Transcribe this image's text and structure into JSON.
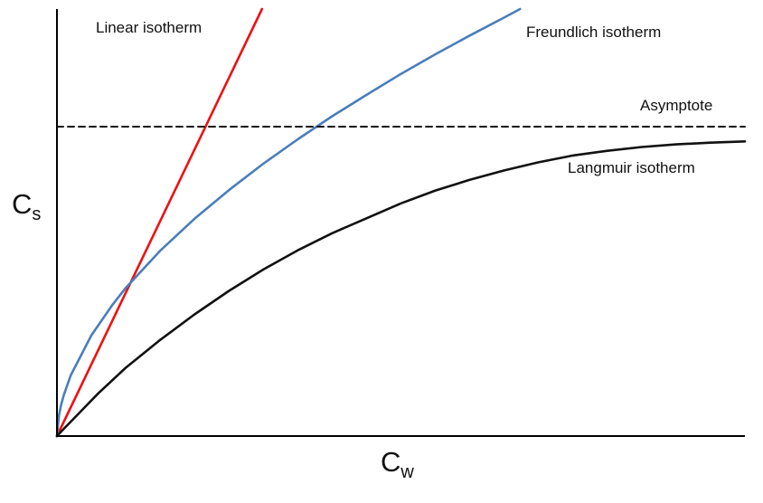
{
  "figure": {
    "background": "#ffffff",
    "axis_color": "#000000"
  },
  "chart_data": {
    "type": "line",
    "title": "",
    "subtitle": "",
    "xlabel": {
      "main": "C",
      "sub": "w"
    },
    "ylabel": {
      "main": "C",
      "sub": "s"
    },
    "x_range": [
      0,
      1
    ],
    "y_range": [
      0,
      1
    ],
    "grid": false,
    "legend": "inline-annotations",
    "axes_shown": [
      "left",
      "bottom"
    ],
    "ticks": "none",
    "series": [
      {
        "id": "linear",
        "name": "Linear isotherm",
        "color": "#ee1111",
        "style": "solid",
        "points": [
          [
            0,
            0
          ],
          [
            0.298,
            1.0
          ]
        ]
      },
      {
        "id": "freundlich",
        "name": "Freundlich isotherm",
        "color": "#4a7ebb",
        "style": "solid",
        "points": [
          [
            0,
            0
          ],
          [
            0.003,
            0.049
          ],
          [
            0.006,
            0.073
          ],
          [
            0.01,
            0.096
          ],
          [
            0.02,
            0.142
          ],
          [
            0.05,
            0.236
          ],
          [
            0.08,
            0.306
          ],
          [
            0.1,
            0.347
          ],
          [
            0.15,
            0.434
          ],
          [
            0.2,
            0.509
          ],
          [
            0.25,
            0.576
          ],
          [
            0.3,
            0.638
          ],
          [
            0.35,
            0.695
          ],
          [
            0.4,
            0.749
          ],
          [
            0.45,
            0.799
          ],
          [
            0.5,
            0.848
          ],
          [
            0.55,
            0.894
          ],
          [
            0.6,
            0.938
          ],
          [
            0.65,
            0.98
          ],
          [
            0.673,
            1.0
          ]
        ]
      },
      {
        "id": "langmuir",
        "name": "Langmuir isotherm",
        "color": "#111111",
        "style": "solid",
        "points": [
          [
            0,
            0
          ],
          [
            0.01,
            0.017
          ],
          [
            0.03,
            0.05
          ],
          [
            0.06,
            0.1
          ],
          [
            0.1,
            0.16
          ],
          [
            0.15,
            0.225
          ],
          [
            0.2,
            0.285
          ],
          [
            0.25,
            0.34
          ],
          [
            0.3,
            0.39
          ],
          [
            0.35,
            0.435
          ],
          [
            0.4,
            0.475
          ],
          [
            0.45,
            0.51
          ],
          [
            0.5,
            0.545
          ],
          [
            0.55,
            0.575
          ],
          [
            0.6,
            0.6
          ],
          [
            0.65,
            0.622
          ],
          [
            0.7,
            0.641
          ],
          [
            0.75,
            0.657
          ],
          [
            0.8,
            0.668
          ],
          [
            0.85,
            0.677
          ],
          [
            0.9,
            0.683
          ],
          [
            0.95,
            0.687
          ],
          [
            1.0,
            0.69
          ]
        ]
      },
      {
        "id": "asymptote",
        "name": "Asymptote",
        "color": "#111111",
        "style": "dashed",
        "points": [
          [
            0,
            0.7246
          ],
          [
            1.0,
            0.7246
          ]
        ]
      }
    ]
  }
}
